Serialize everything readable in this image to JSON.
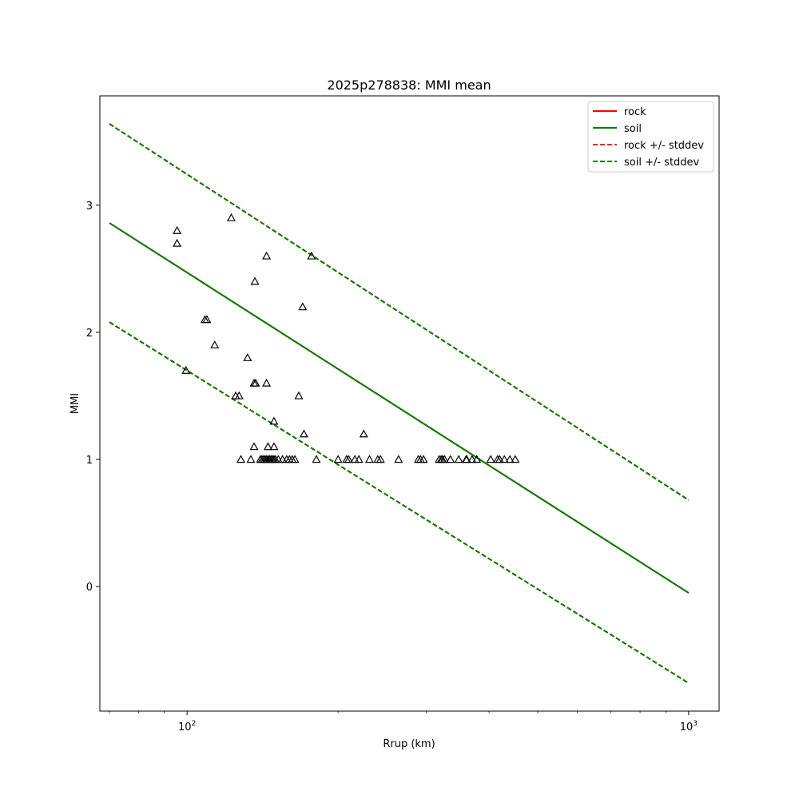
{
  "chart_data": {
    "type": "scatter",
    "title": "2025p278838: MMI mean",
    "xlabel": "Rrup (km)",
    "ylabel": "MMI",
    "xscale": "log",
    "xlim": [
      67,
      1150
    ],
    "ylim": [
      -0.98,
      3.86
    ],
    "x_tick_labels": [
      {
        "value": 100,
        "base": "10",
        "exp": "2"
      },
      {
        "value": 1000,
        "base": "10",
        "exp": "3"
      }
    ],
    "y_ticks": [
      0,
      1,
      2,
      3
    ],
    "y_tick_labels": [
      "0",
      "1",
      "2",
      "3"
    ],
    "grid": false,
    "legend": {
      "position": "top-right",
      "entries": [
        {
          "label": "rock",
          "color": "#ff0000",
          "style": "solid"
        },
        {
          "label": "soil",
          "color": "#007f00",
          "style": "solid"
        },
        {
          "label": "rock +/- stddev",
          "color": "#ff0000",
          "style": "dashed"
        },
        {
          "label": "soil +/- stddev",
          "color": "#007f00",
          "style": "dashed"
        }
      ]
    },
    "series": [
      {
        "name": "rock",
        "style": "solid",
        "color": "#ff0000",
        "x": [
          70,
          1000
        ],
        "y": [
          2.86,
          -0.05
        ]
      },
      {
        "name": "soil",
        "style": "solid",
        "color": "#007f00",
        "x": [
          70,
          1000
        ],
        "y": [
          2.86,
          -0.05
        ]
      },
      {
        "name": "rock +/- stddev",
        "style": "dashed",
        "color": "#ff0000",
        "x": [
          70,
          1000
        ],
        "y": [
          3.64,
          0.68
        ]
      },
      {
        "name": "rock +/- stddev",
        "style": "dashed",
        "color": "#ff0000",
        "x": [
          70,
          1000
        ],
        "y": [
          2.08,
          -0.76
        ]
      },
      {
        "name": "soil +/- stddev",
        "style": "dashed",
        "color": "#007f00",
        "x": [
          70,
          1000
        ],
        "y": [
          3.64,
          0.68
        ]
      },
      {
        "name": "soil +/- stddev",
        "style": "dashed",
        "color": "#007f00",
        "x": [
          70,
          1000
        ],
        "y": [
          2.08,
          -0.76
        ]
      }
    ],
    "points": {
      "marker": "triangle-open",
      "color": "#000000",
      "x": [
        95.5,
        95.5,
        122.5,
        108.5,
        109.5,
        113.5,
        132,
        136.5,
        144,
        99.5,
        136,
        125,
        127,
        137,
        144,
        149,
        170,
        177,
        167,
        171,
        149,
        145,
        148,
        225,
        136,
        128,
        134,
        140,
        141,
        142,
        143,
        143,
        144,
        145,
        146,
        146,
        147,
        148,
        149,
        150,
        152,
        155,
        158,
        160,
        162,
        164,
        181,
        200,
        208,
        210,
        216,
        220,
        231,
        240,
        243,
        264,
        289,
        292,
        296,
        318,
        321,
        323,
        326,
        335,
        348,
        360,
        361,
        370,
        378,
        403,
        416,
        420,
        429,
        440,
        451
      ],
      "y": [
        2.8,
        2.7,
        2.9,
        2.1,
        2.1,
        1.9,
        1.8,
        2.4,
        2.6,
        1.7,
        1.6,
        1.5,
        1.5,
        1.6,
        1.6,
        1.3,
        2.2,
        2.6,
        1.5,
        1.2,
        1.1,
        1.1,
        1.0,
        1.2,
        1.1,
        1.0,
        1.0,
        1.0,
        1.0,
        1.0,
        1.0,
        1.0,
        1.0,
        1.0,
        1.0,
        1.0,
        1.0,
        1.0,
        1.0,
        1.0,
        1.0,
        1.0,
        1.0,
        1.0,
        1.0,
        1.0,
        1.0,
        1.0,
        1.0,
        1.0,
        1.0,
        1.0,
        1.0,
        1.0,
        1.0,
        1.0,
        1.0,
        1.0,
        1.0,
        1.0,
        1.0,
        1.0,
        1.0,
        1.0,
        1.0,
        1.0,
        1.0,
        1.0,
        1.0,
        1.0,
        1.0,
        1.0,
        1.0,
        1.0,
        1.0
      ]
    }
  }
}
